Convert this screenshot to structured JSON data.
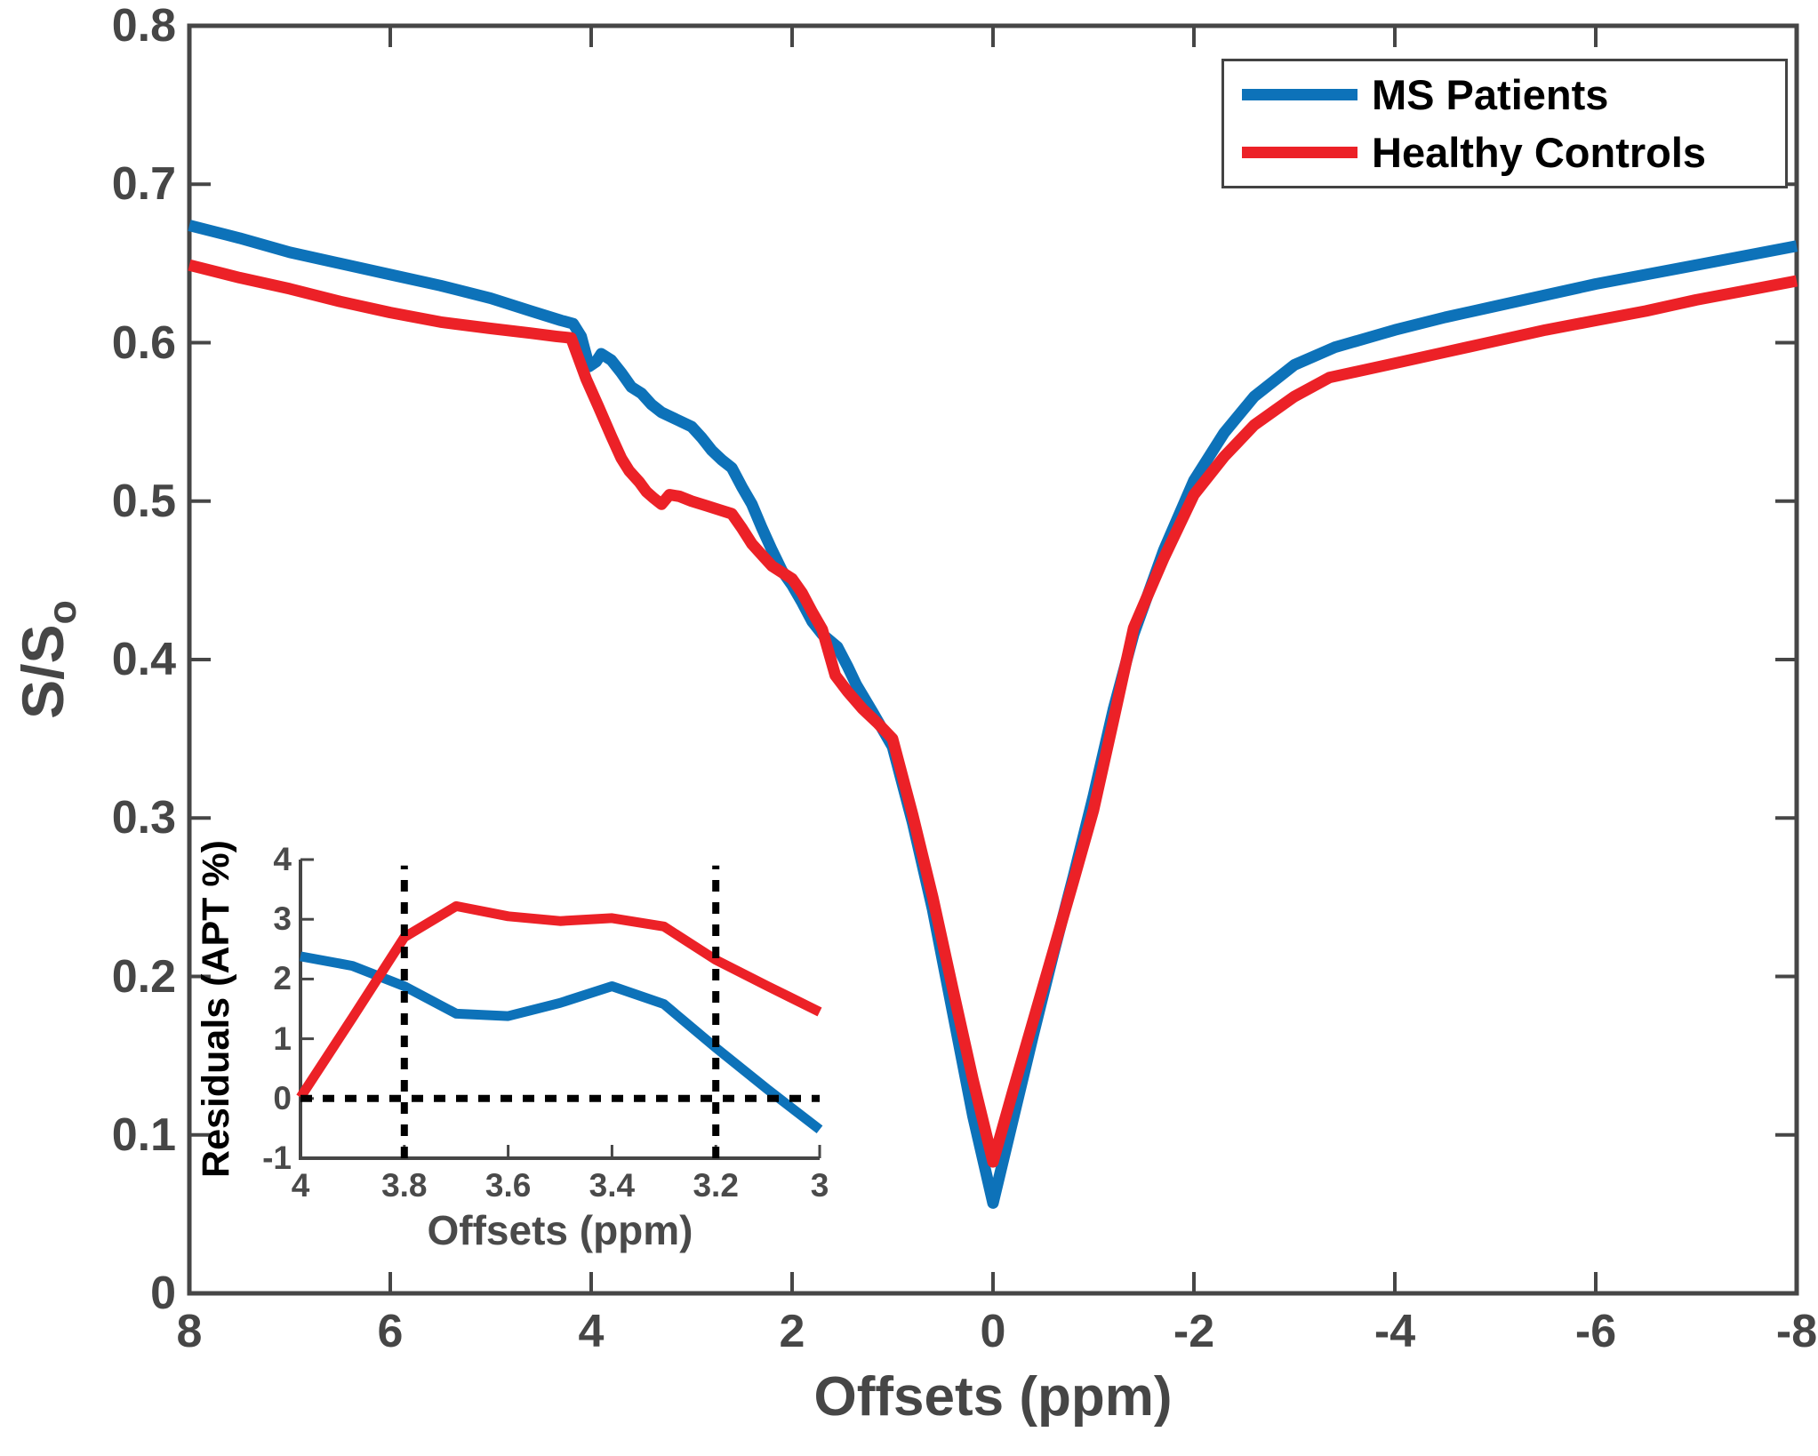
{
  "page": {
    "background": "#ffffff"
  },
  "colors": {
    "ms_patients": "#0d72b9",
    "healthy_controls": "#ec2127",
    "axis": "#464646",
    "tick_text": "#464646",
    "legend_text": "#000000",
    "dotted_reference": "#000000",
    "background": "#ffffff"
  },
  "legend": {
    "position": "top-right"
  },
  "chart_data": [
    {
      "id": "main",
      "type": "line",
      "title": "",
      "xlabel": "Offsets (ppm)",
      "ylabel": "S/S_o",
      "ylabel_base": "S/S",
      "ylabel_sub": "o",
      "xlim": [
        8,
        -8
      ],
      "ylim": [
        0,
        0.8
      ],
      "xticks": [
        8,
        6,
        4,
        2,
        0,
        -2,
        -4,
        -6,
        -8
      ],
      "yticks": [
        0,
        0.1,
        0.2,
        0.3,
        0.4,
        0.5,
        0.6,
        0.7,
        0.8
      ],
      "grid": false,
      "box": true,
      "legend_position": "top-right",
      "series": [
        {
          "name": "MS Patients",
          "color": "#0d72b9",
          "points": [
            [
              8,
              0.674
            ],
            [
              7.5,
              0.666
            ],
            [
              7,
              0.657
            ],
            [
              6.5,
              0.65
            ],
            [
              6,
              0.643
            ],
            [
              5.5,
              0.636
            ],
            [
              5,
              0.628
            ],
            [
              4.6,
              0.62
            ],
            [
              4.3,
              0.614
            ],
            [
              4.18,
              0.612
            ],
            [
              4.1,
              0.604
            ],
            [
              4.02,
              0.585
            ],
            [
              3.95,
              0.588
            ],
            [
              3.9,
              0.593
            ],
            [
              3.8,
              0.589
            ],
            [
              3.7,
              0.581
            ],
            [
              3.6,
              0.572
            ],
            [
              3.5,
              0.568
            ],
            [
              3.4,
              0.561
            ],
            [
              3.3,
              0.556
            ],
            [
              3.2,
              0.553
            ],
            [
              3.1,
              0.55
            ],
            [
              3.0,
              0.547
            ],
            [
              2.9,
              0.54
            ],
            [
              2.8,
              0.532
            ],
            [
              2.7,
              0.526
            ],
            [
              2.6,
              0.521
            ],
            [
              2.5,
              0.509
            ],
            [
              2.4,
              0.498
            ],
            [
              2.3,
              0.483
            ],
            [
              2.2,
              0.469
            ],
            [
              2.1,
              0.456
            ],
            [
              2.0,
              0.447
            ],
            [
              1.9,
              0.436
            ],
            [
              1.8,
              0.424
            ],
            [
              1.7,
              0.416
            ],
            [
              1.55,
              0.408
            ],
            [
              1.45,
              0.396
            ],
            [
              1.36,
              0.384
            ],
            [
              1.2,
              0.367
            ],
            [
              1.0,
              0.345
            ],
            [
              0.8,
              0.297
            ],
            [
              0.6,
              0.242
            ],
            [
              0.4,
              0.177
            ],
            [
              0.2,
              0.112
            ],
            [
              0,
              0.057
            ],
            [
              -0.2,
              0.11
            ],
            [
              -0.4,
              0.163
            ],
            [
              -0.6,
              0.214
            ],
            [
              -0.8,
              0.263
            ],
            [
              -1.0,
              0.314
            ],
            [
              -1.2,
              0.369
            ],
            [
              -1.4,
              0.416
            ],
            [
              -1.7,
              0.469
            ],
            [
              -2.0,
              0.513
            ],
            [
              -2.3,
              0.543
            ],
            [
              -2.6,
              0.566
            ],
            [
              -3.0,
              0.586
            ],
            [
              -3.4,
              0.597
            ],
            [
              -4.0,
              0.608
            ],
            [
              -4.5,
              0.616
            ],
            [
              -5.0,
              0.623
            ],
            [
              -5.5,
              0.63
            ],
            [
              -6.0,
              0.637
            ],
            [
              -6.5,
              0.643
            ],
            [
              -7.0,
              0.649
            ],
            [
              -7.5,
              0.655
            ],
            [
              -8,
              0.661
            ]
          ]
        },
        {
          "name": "Healthy Controls",
          "color": "#ec2127",
          "points": [
            [
              8,
              0.649
            ],
            [
              7.5,
              0.641
            ],
            [
              7,
              0.634
            ],
            [
              6.5,
              0.626
            ],
            [
              6,
              0.619
            ],
            [
              5.5,
              0.613
            ],
            [
              5,
              0.609
            ],
            [
              4.6,
              0.606
            ],
            [
              4.35,
              0.604
            ],
            [
              4.2,
              0.603
            ],
            [
              4.05,
              0.577
            ],
            [
              3.93,
              0.56
            ],
            [
              3.8,
              0.541
            ],
            [
              3.7,
              0.527
            ],
            [
              3.62,
              0.519
            ],
            [
              3.52,
              0.512
            ],
            [
              3.45,
              0.506
            ],
            [
              3.38,
              0.502
            ],
            [
              3.3,
              0.498
            ],
            [
              3.22,
              0.504
            ],
            [
              3.12,
              0.503
            ],
            [
              3.0,
              0.5
            ],
            [
              2.85,
              0.497
            ],
            [
              2.7,
              0.494
            ],
            [
              2.6,
              0.492
            ],
            [
              2.5,
              0.483
            ],
            [
              2.4,
              0.473
            ],
            [
              2.3,
              0.466
            ],
            [
              2.2,
              0.459
            ],
            [
              2.1,
              0.455
            ],
            [
              2.0,
              0.451
            ],
            [
              1.9,
              0.442
            ],
            [
              1.8,
              0.43
            ],
            [
              1.7,
              0.419
            ],
            [
              1.57,
              0.39
            ],
            [
              1.45,
              0.38
            ],
            [
              1.3,
              0.369
            ],
            [
              1.15,
              0.36
            ],
            [
              1.0,
              0.35
            ],
            [
              0.8,
              0.302
            ],
            [
              0.6,
              0.25
            ],
            [
              0.4,
              0.192
            ],
            [
              0.2,
              0.135
            ],
            [
              0,
              0.083
            ],
            [
              -0.2,
              0.128
            ],
            [
              -0.4,
              0.172
            ],
            [
              -0.6,
              0.216
            ],
            [
              -0.8,
              0.26
            ],
            [
              -1.0,
              0.305
            ],
            [
              -1.2,
              0.362
            ],
            [
              -1.4,
              0.42
            ],
            [
              -1.7,
              0.464
            ],
            [
              -2.0,
              0.504
            ],
            [
              -2.3,
              0.528
            ],
            [
              -2.6,
              0.548
            ],
            [
              -3.0,
              0.566
            ],
            [
              -3.35,
              0.578
            ],
            [
              -4.0,
              0.587
            ],
            [
              -4.5,
              0.594
            ],
            [
              -5.0,
              0.601
            ],
            [
              -5.5,
              0.608
            ],
            [
              -6.0,
              0.614
            ],
            [
              -6.5,
              0.62
            ],
            [
              -7.0,
              0.627
            ],
            [
              -7.5,
              0.633
            ],
            [
              -8,
              0.639
            ]
          ]
        }
      ]
    },
    {
      "id": "inset",
      "type": "line",
      "title": "",
      "xlabel": "Offsets (ppm)",
      "ylabel": "Residuals (APT %)",
      "xlim": [
        4,
        3
      ],
      "ylim": [
        -1,
        4
      ],
      "xticks": [
        4,
        3.8,
        3.6,
        3.4,
        3.2,
        3
      ],
      "yticks": [
        -1,
        0,
        1,
        2,
        3,
        4
      ],
      "grid": false,
      "box": false,
      "reference_lines": [
        {
          "orientation": "vertical",
          "x": 3.8,
          "style": "dotted",
          "color": "#000000"
        },
        {
          "orientation": "vertical",
          "x": 3.2,
          "style": "dotted",
          "color": "#000000"
        },
        {
          "orientation": "horizontal",
          "y": 0,
          "style": "dotted",
          "color": "#000000"
        }
      ],
      "series": [
        {
          "name": "MS Patients",
          "color": "#0d72b9",
          "points": [
            [
              4,
              2.38
            ],
            [
              3.9,
              2.22
            ],
            [
              3.8,
              1.88
            ],
            [
              3.7,
              1.42
            ],
            [
              3.6,
              1.38
            ],
            [
              3.5,
              1.6
            ],
            [
              3.4,
              1.88
            ],
            [
              3.3,
              1.58
            ],
            [
              3.2,
              0.85
            ],
            [
              3.1,
              0.15
            ],
            [
              3,
              -0.52
            ]
          ]
        },
        {
          "name": "Healthy Controls",
          "color": "#ec2127",
          "points": [
            [
              4,
              0.02
            ],
            [
              3.9,
              1.35
            ],
            [
              3.8,
              2.7
            ],
            [
              3.7,
              3.22
            ],
            [
              3.6,
              3.05
            ],
            [
              3.5,
              2.97
            ],
            [
              3.4,
              3.02
            ],
            [
              3.3,
              2.88
            ],
            [
              3.2,
              2.32
            ],
            [
              3.1,
              1.88
            ],
            [
              3,
              1.45
            ]
          ]
        }
      ]
    }
  ]
}
